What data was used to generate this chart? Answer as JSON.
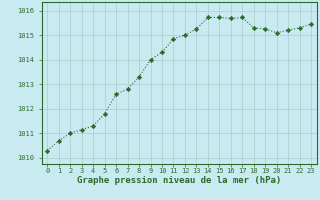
{
  "x": [
    0,
    1,
    2,
    3,
    4,
    5,
    6,
    7,
    8,
    9,
    10,
    11,
    12,
    13,
    14,
    15,
    16,
    17,
    18,
    19,
    20,
    21,
    22,
    23
  ],
  "y": [
    1010.3,
    1010.7,
    1011.0,
    1011.15,
    1011.3,
    1011.8,
    1012.6,
    1012.8,
    1013.3,
    1014.0,
    1014.3,
    1014.85,
    1015.0,
    1015.25,
    1015.72,
    1015.72,
    1015.68,
    1015.72,
    1015.3,
    1015.25,
    1015.1,
    1015.2,
    1015.3,
    1015.45
  ],
  "line_color": "#2d6b2d",
  "marker": "D",
  "marker_size": 2.2,
  "bg_color": "#c8eaf0",
  "grid_color": "#aacccc",
  "xlabel": "Graphe pression niveau de la mer (hPa)",
  "xlabel_color": "#2d6b2d",
  "ylabel_ticks": [
    1010,
    1011,
    1012,
    1013,
    1014,
    1015,
    1016
  ],
  "xtick_labels": [
    "0",
    "1",
    "2",
    "3",
    "4",
    "5",
    "6",
    "7",
    "8",
    "9",
    "10",
    "11",
    "12",
    "13",
    "14",
    "15",
    "16",
    "17",
    "18",
    "19",
    "20",
    "21",
    "22",
    "23"
  ],
  "ylim": [
    1009.75,
    1016.35
  ],
  "xlim": [
    -0.5,
    23.5
  ],
  "tick_color": "#2d6b2d",
  "tick_fontsize": 5.0,
  "xlabel_fontsize": 6.5,
  "line_width": 0.8
}
